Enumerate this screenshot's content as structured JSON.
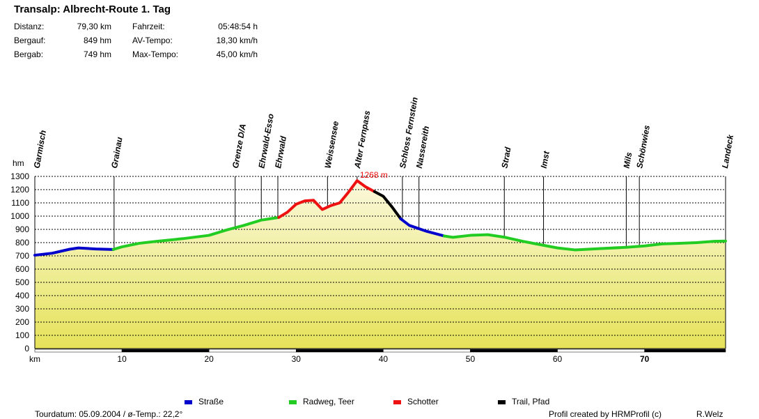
{
  "title": "Transalp: Albrecht-Route 1. Tag",
  "stats": [
    {
      "label": "Distanz:",
      "value": "79,30 km",
      "label2": "Fahrzeit:",
      "value2": "05:48:54 h"
    },
    {
      "label": "Bergauf:",
      "value": "849 hm",
      "label2": "AV-Tempo:",
      "value2": "18,30 km/h"
    },
    {
      "label": "Bergab:",
      "value": "749 hm",
      "label2": "Max-Tempo:",
      "value2": "45,00 km/h"
    }
  ],
  "legend": [
    {
      "label": "Straße",
      "color": "#0000cc"
    },
    {
      "label": "Radweg, Teer",
      "color": "#22cc22"
    },
    {
      "label": "Schotter",
      "color": "#ee1111"
    },
    {
      "label": "Trail, Pfad",
      "color": "#000000"
    }
  ],
  "footer": {
    "left": "Tourdatum: 05.09.2004  /  ø-Temp.: 22,2°",
    "credit": "Profil created by HRMProfil (c)",
    "author": "R.Welz"
  },
  "chart_data": {
    "type": "area",
    "ylabel": "hm",
    "xlabel": "km",
    "ylim": [
      0,
      1300
    ],
    "xlim": [
      0,
      79.3
    ],
    "yticks": [
      0,
      100,
      200,
      300,
      400,
      500,
      600,
      700,
      800,
      900,
      1000,
      1100,
      1200,
      1300
    ],
    "xticks": [
      10,
      20,
      30,
      40,
      50,
      60,
      70
    ],
    "grid": true,
    "max_annotation": {
      "x": 37.0,
      "y": 1268,
      "text": "1268 m"
    },
    "waypoints": [
      {
        "name": "Garmisch",
        "km": 0.2
      },
      {
        "name": "Grainau",
        "km": 9.1
      },
      {
        "name": "Grenze D/A",
        "km": 23.0
      },
      {
        "name": "Ehrwald-Esso",
        "km": 26.0
      },
      {
        "name": "Ehrwald",
        "km": 27.9
      },
      {
        "name": "Weissensee",
        "km": 33.6
      },
      {
        "name": "Alter Fernpass",
        "km": 37.0
      },
      {
        "name": "Schloss Fernstein",
        "km": 42.2
      },
      {
        "name": "Nassereith",
        "km": 44.1
      },
      {
        "name": "Strad",
        "km": 53.9
      },
      {
        "name": "Imst",
        "km": 58.4
      },
      {
        "name": "Mils",
        "km": 67.9
      },
      {
        "name": "Schönwies",
        "km": 69.4
      },
      {
        "name": "Landeck",
        "km": 79.2
      }
    ],
    "series": [
      {
        "name": "Straße",
        "color": "#0000cc",
        "points": [
          [
            0,
            705
          ],
          [
            2,
            720
          ],
          [
            4,
            750
          ],
          [
            5,
            760
          ],
          [
            7,
            752
          ],
          [
            9,
            748
          ]
        ]
      },
      {
        "name": "Radweg, Teer",
        "color": "#22cc22",
        "points": [
          [
            9,
            748
          ],
          [
            10,
            768
          ],
          [
            12,
            795
          ],
          [
            14,
            810
          ],
          [
            17,
            830
          ],
          [
            20,
            855
          ],
          [
            22,
            895
          ],
          [
            24,
            930
          ],
          [
            26,
            970
          ],
          [
            28,
            990
          ]
        ]
      },
      {
        "name": "Schotter",
        "color": "#ee1111",
        "points": [
          [
            28,
            990
          ],
          [
            29,
            1030
          ],
          [
            30,
            1090
          ],
          [
            31,
            1115
          ],
          [
            32,
            1120
          ],
          [
            33,
            1050
          ],
          [
            34,
            1080
          ],
          [
            35,
            1100
          ],
          [
            36,
            1180
          ],
          [
            37,
            1268
          ],
          [
            38,
            1220
          ],
          [
            39,
            1185
          ]
        ]
      },
      {
        "name": "Trail, Pfad",
        "color": "#000000",
        "points": [
          [
            39,
            1185
          ],
          [
            40,
            1150
          ],
          [
            41,
            1070
          ],
          [
            42,
            980
          ]
        ]
      },
      {
        "name": "Straße",
        "color": "#0000cc",
        "points": [
          [
            42,
            980
          ],
          [
            43,
            930
          ],
          [
            45,
            885
          ],
          [
            47,
            850
          ]
        ]
      },
      {
        "name": "Radweg, Teer",
        "color": "#22cc22",
        "points": [
          [
            47,
            850
          ],
          [
            48,
            840
          ],
          [
            50,
            855
          ],
          [
            52,
            860
          ],
          [
            54,
            840
          ],
          [
            56,
            810
          ],
          [
            58,
            785
          ],
          [
            60,
            760
          ],
          [
            62,
            745
          ],
          [
            65,
            755
          ],
          [
            68,
            765
          ],
          [
            70,
            775
          ],
          [
            72,
            790
          ],
          [
            74,
            795
          ],
          [
            76,
            800
          ],
          [
            78,
            810
          ],
          [
            79.3,
            812
          ]
        ]
      }
    ]
  }
}
